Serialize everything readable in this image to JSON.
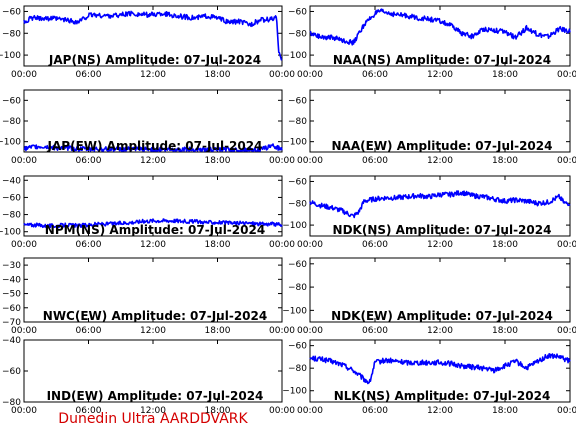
{
  "footer": "Dunedin Ultra AARDDVARK",
  "colors": {
    "trace": "#0000ff",
    "footer": "#d40000",
    "axes": "#000000"
  },
  "chart_data": [
    {
      "type": "line",
      "title": "JAP(NS) Amplitude: 07-Jul-2024",
      "xlim": [
        "00:00",
        "24:00"
      ],
      "xticks": [
        "00:00",
        "06:00",
        "12:00",
        "18:00",
        "00:00"
      ],
      "ylim": [
        -110,
        -55
      ],
      "yticks": [
        -100,
        -80,
        -60
      ],
      "series": [
        {
          "x": [
            0,
            0.5,
            1,
            2,
            3,
            4,
            5,
            6,
            6.5,
            7,
            8,
            9,
            10,
            11,
            12,
            13,
            14,
            15,
            16,
            17,
            18,
            19,
            20,
            21,
            22,
            23,
            23.5,
            23.7,
            24
          ],
          "values": [
            -70,
            -67,
            -66,
            -66,
            -67,
            -68,
            -70,
            -64,
            -63,
            -64,
            -64,
            -63,
            -62,
            -63,
            -63,
            -62,
            -64,
            -65,
            -66,
            -64,
            -66,
            -70,
            -69,
            -72,
            -68,
            -67,
            -66,
            -99,
            -103
          ]
        }
      ]
    },
    {
      "type": "line",
      "title": "NAA(NS) Amplitude: 07-Jul-2024",
      "xlim": [
        "00:00",
        "24:00"
      ],
      "xticks": [
        "00:00",
        "06:00",
        "12:00",
        "18:00",
        "00:00"
      ],
      "ylim": [
        -110,
        -55
      ],
      "yticks": [
        -100,
        -80,
        -60
      ],
      "series": [
        {
          "x": [
            0,
            1,
            2,
            3,
            4,
            5,
            6,
            6.5,
            7,
            8,
            9,
            10,
            11,
            12,
            13,
            14,
            15,
            16,
            17,
            18,
            19,
            20,
            21,
            22,
            23,
            24
          ],
          "values": [
            -80,
            -83,
            -84,
            -86,
            -89,
            -72,
            -62,
            -60,
            -61,
            -63,
            -64,
            -66,
            -67,
            -69,
            -73,
            -80,
            -83,
            -76,
            -77,
            -79,
            -84,
            -75,
            -81,
            -83,
            -76,
            -78
          ]
        }
      ]
    },
    {
      "type": "line",
      "title": "JAP(EW) Amplitude: 07-Jul-2024",
      "xlim": [
        "00:00",
        "24:00"
      ],
      "xticks": [
        "00:00",
        "06:00",
        "12:00",
        "18:00",
        "00:00"
      ],
      "ylim": [
        -110,
        -50
      ],
      "yticks": [
        -100,
        -80,
        -60
      ],
      "series": [
        {
          "x": [
            0,
            1,
            2,
            3,
            4,
            5,
            22,
            23,
            24
          ],
          "values": [
            -107,
            -105,
            -105,
            -106,
            -106,
            -107,
            -108,
            -104,
            -107
          ]
        }
      ]
    },
    {
      "type": "line",
      "title": "NAA(EW) Amplitude: 07-Jul-2024",
      "xlim": [
        "00:00",
        "24:00"
      ],
      "xticks": [
        "00:00",
        "06:00",
        "12:00",
        "18:00",
        "00:00"
      ],
      "ylim": [
        -110,
        -50
      ],
      "yticks": [
        -100,
        -80,
        -60
      ],
      "series": []
    },
    {
      "type": "line",
      "title": "NPM(NS) Amplitude: 07-Jul-2024",
      "xlim": [
        "00:00",
        "24:00"
      ],
      "xticks": [
        "00:00",
        "06:00",
        "12:00",
        "18:00",
        "00:00"
      ],
      "ylim": [
        -105,
        -35
      ],
      "yticks": [
        -100,
        -80,
        -60,
        -40
      ],
      "series": [
        {
          "x": [
            0,
            1,
            2,
            3,
            4,
            5,
            6,
            7,
            8,
            9,
            10,
            11,
            12,
            13,
            14,
            15,
            16,
            17,
            18,
            19,
            20,
            21,
            22,
            23,
            24
          ],
          "values": [
            -92,
            -92,
            -93,
            -93,
            -92,
            -93,
            -92,
            -91,
            -91,
            -90,
            -89,
            -88,
            -87,
            -87,
            -87,
            -88,
            -88,
            -89,
            -89,
            -90,
            -90,
            -90,
            -91,
            -91,
            -92
          ]
        }
      ]
    },
    {
      "type": "line",
      "title": "NDK(NS) Amplitude: 07-Jul-2024",
      "xlim": [
        "00:00",
        "24:00"
      ],
      "xticks": [
        "00:00",
        "06:00",
        "12:00",
        "18:00",
        "00:00"
      ],
      "ylim": [
        -110,
        -55
      ],
      "yticks": [
        -100,
        -80,
        -60
      ],
      "series": [
        {
          "x": [
            0,
            1,
            2,
            3,
            4,
            4.5,
            5,
            6,
            7,
            8,
            9,
            10,
            11,
            12,
            13,
            14,
            15,
            16,
            17,
            18,
            19,
            20,
            21,
            22,
            23,
            23.5,
            24
          ],
          "values": [
            -79,
            -82,
            -84,
            -87,
            -92,
            -88,
            -78,
            -76,
            -75,
            -75,
            -74,
            -73,
            -74,
            -72,
            -72,
            -70,
            -73,
            -74,
            -76,
            -78,
            -77,
            -78,
            -80,
            -79,
            -74,
            -80,
            -80
          ]
        }
      ]
    },
    {
      "type": "line",
      "title": "NWC(EW) Amplitude: 07-Jul-2024",
      "xlim": [
        "00:00",
        "24:00"
      ],
      "xticks": [
        "00:00",
        "06:00",
        "12:00",
        "18:00",
        "00:00"
      ],
      "ylim": [
        -70,
        -25
      ],
      "yticks": [
        -70,
        -60,
        -50,
        -40,
        -30
      ],
      "series": []
    },
    {
      "type": "line",
      "title": "NDK(EW) Amplitude: 07-Jul-2024",
      "xlim": [
        "00:00",
        "24:00"
      ],
      "xticks": [
        "00:00",
        "06:00",
        "12:00",
        "18:00",
        "00:00"
      ],
      "ylim": [
        -110,
        -55
      ],
      "yticks": [
        -100,
        -80,
        -60
      ],
      "series": []
    },
    {
      "type": "line",
      "title": "IND(EW) Amplitude: 07-Jul-2024",
      "xlim": [
        "00:00",
        "24:00"
      ],
      "xticks": [
        "00:00",
        "06:00",
        "12:00",
        "18:00",
        "00:00"
      ],
      "ylim": [
        -80,
        -40
      ],
      "yticks": [
        -80,
        -60,
        -40
      ],
      "series": []
    },
    {
      "type": "line",
      "title": "NLK(NS) Amplitude: 07-Jul-2024",
      "xlim": [
        "00:00",
        "24:00"
      ],
      "xticks": [
        "00:00",
        "06:00",
        "12:00",
        "18:00",
        "00:00"
      ],
      "ylim": [
        -110,
        -55
      ],
      "yticks": [
        -100,
        -80,
        -60
      ],
      "series": [
        {
          "x": [
            0,
            1,
            2,
            3,
            4,
            5,
            5.5,
            6,
            7,
            8,
            9,
            10,
            11,
            12,
            13,
            14,
            15,
            16,
            17,
            18,
            19,
            20,
            21,
            22,
            23,
            24
          ],
          "values": [
            -71,
            -72,
            -74,
            -77,
            -82,
            -90,
            -93,
            -75,
            -73,
            -74,
            -75,
            -75,
            -75,
            -75,
            -76,
            -78,
            -79,
            -80,
            -82,
            -78,
            -74,
            -80,
            -74,
            -69,
            -70,
            -74
          ]
        }
      ]
    }
  ]
}
